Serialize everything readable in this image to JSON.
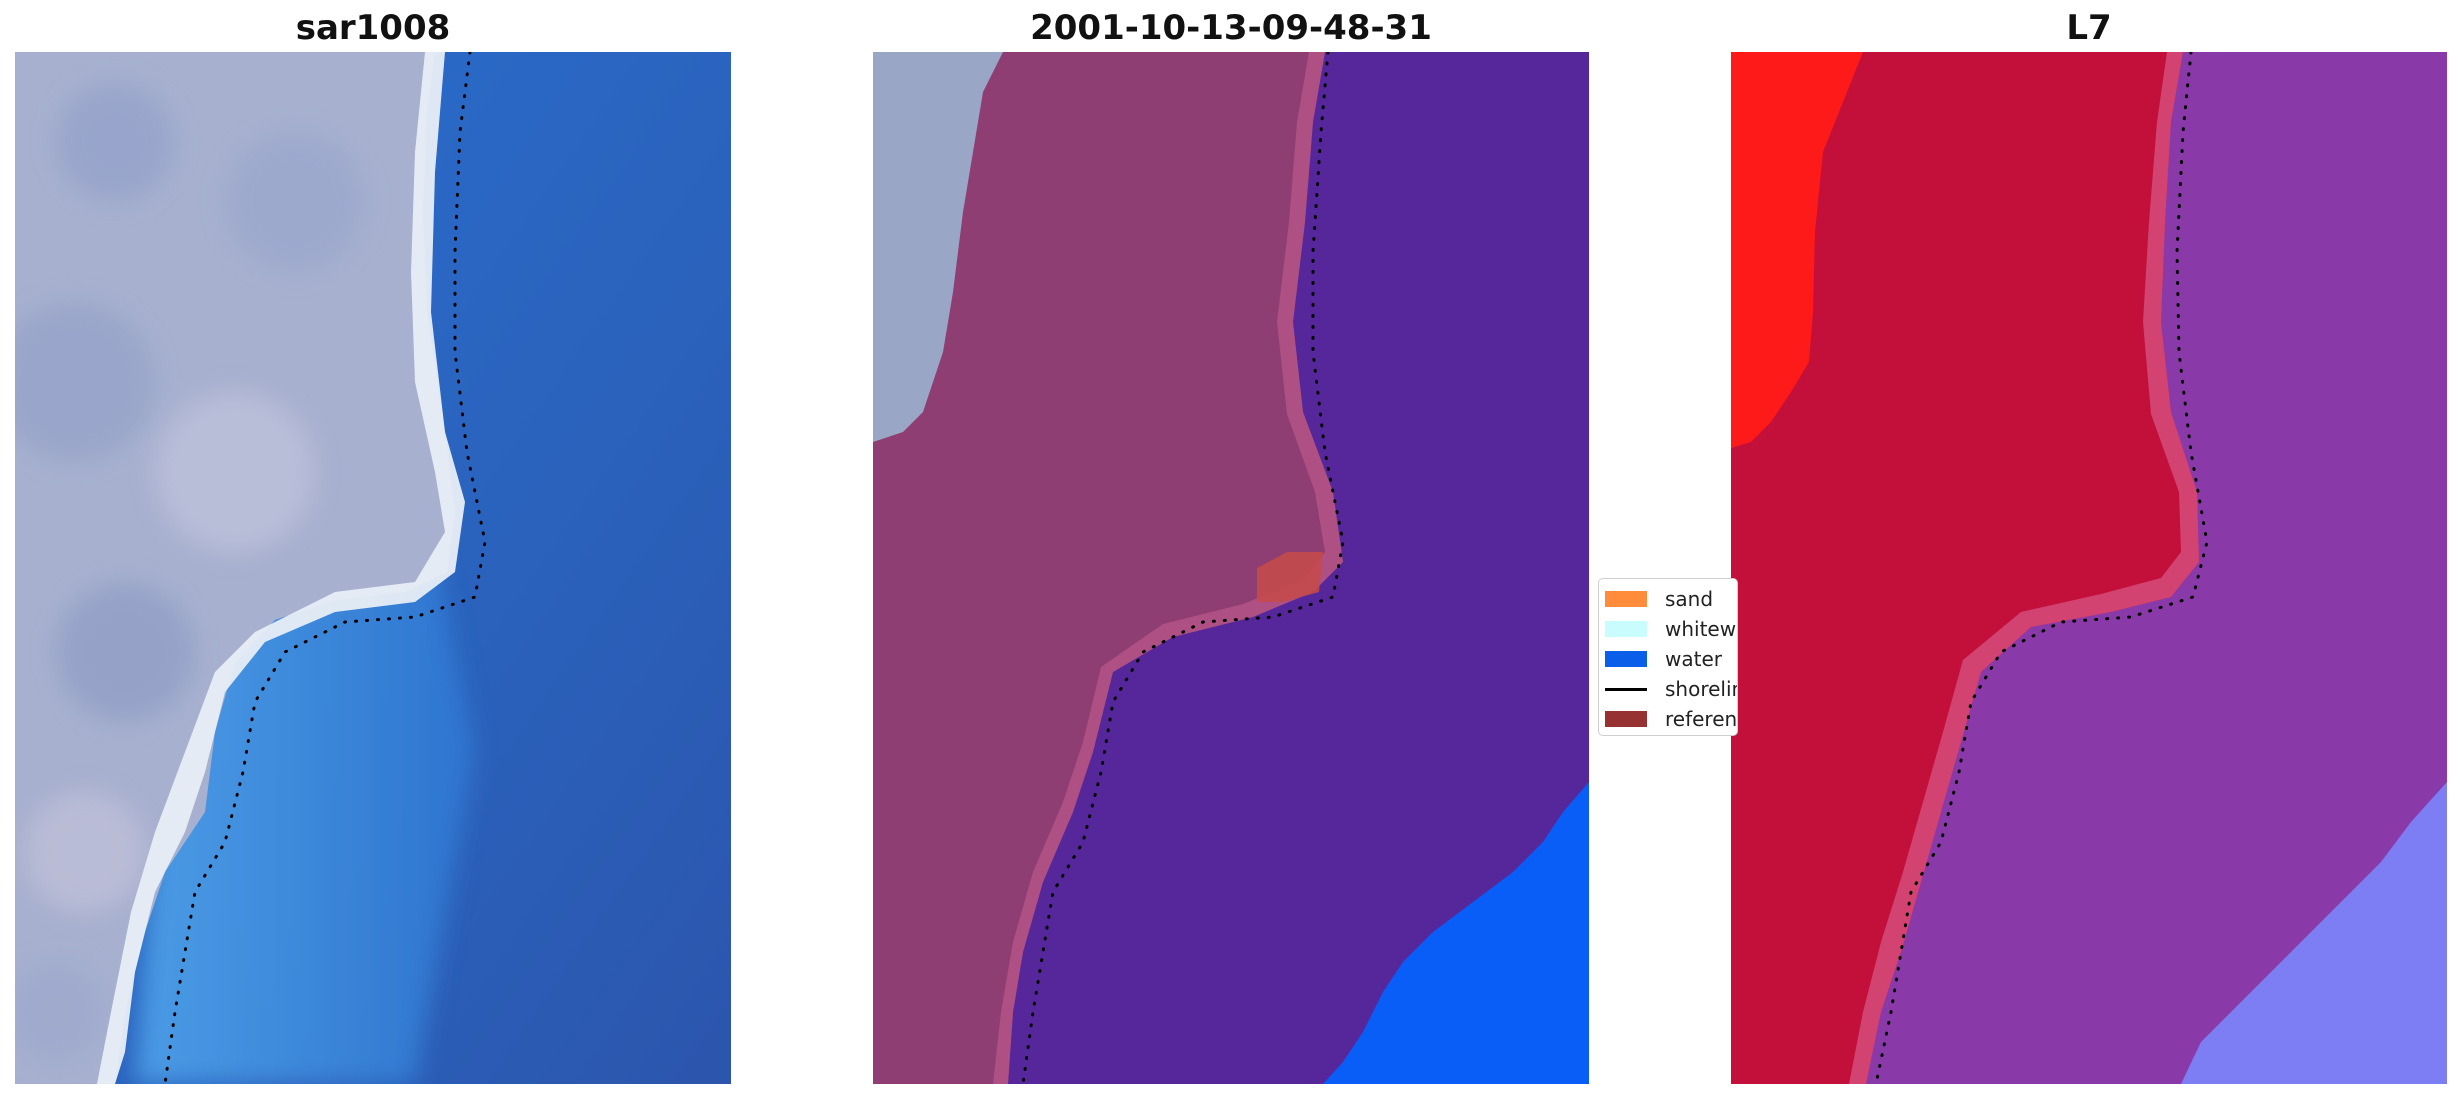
{
  "panels": [
    {
      "title": "sar1008"
    },
    {
      "title": "2001-10-13-09-48-31"
    },
    {
      "title": "L7"
    }
  ],
  "legend": {
    "items": [
      {
        "label": "sand",
        "color": "#ff8c3b",
        "kind": "patch"
      },
      {
        "label": "whitewater",
        "color": "#c9fdfd",
        "kind": "patch"
      },
      {
        "label": "water",
        "color": "#0a5ee8",
        "kind": "patch"
      },
      {
        "label": "shoreline",
        "color": "#000000",
        "kind": "line"
      },
      {
        "label": "reference shoreline",
        "color": "#963232",
        "kind": "patch"
      }
    ]
  },
  "colors": {
    "land_rgb": "#a9b2cf",
    "ocean_rgb": "#2a64c0",
    "sand_overlay": "#8e3d72",
    "water_overlay": "#55279a",
    "far_water": "#0a5ef8",
    "classified_land": "#c2103a",
    "classified_water": "#8a3aa8",
    "l7_far_water": "#7e7ef4",
    "red_edge": "#ff1a1a"
  }
}
